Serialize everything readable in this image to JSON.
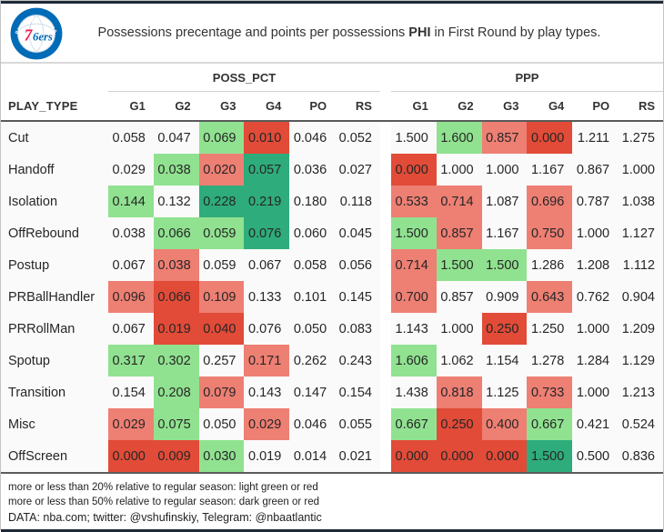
{
  "header": {
    "title": {
      "pre": "Possessions precentage and points per possessions ",
      "team": "PHI",
      "post": " in First Round by play types."
    },
    "logo": {
      "city": "PHILADELPHIA",
      "wordmark_7": "7",
      "wordmark_6ers": "6ers",
      "stars": "★ ★ ★ ★ ★ ★ ★"
    }
  },
  "chart_data": {
    "type": "table",
    "title": "Possessions precentage and points per possessions PHI in First Round by play types.",
    "row_header": "PLAY_TYPE",
    "groups": [
      "POSS_PCT",
      "PPP"
    ],
    "columns": [
      "G1",
      "G2",
      "G3",
      "G4",
      "PO",
      "RS"
    ],
    "color_coding_note": "cell fill codes: lg=light green, dg=dark green, lr=light red, dr=dark red, empty=no fill",
    "rows": [
      {
        "play_type": "Cut",
        "poss_pct": [
          "0.058",
          "0.047",
          "0.069",
          "0.010",
          "0.046",
          "0.052"
        ],
        "poss_pct_colors": [
          "",
          "",
          "lg",
          "dr",
          "",
          ""
        ],
        "ppp": [
          "1.500",
          "1.600",
          "0.857",
          "0.000",
          "1.211",
          "1.275"
        ],
        "ppp_colors": [
          "",
          "lg",
          "lr",
          "dr",
          "",
          ""
        ]
      },
      {
        "play_type": "Handoff",
        "poss_pct": [
          "0.029",
          "0.038",
          "0.020",
          "0.057",
          "0.036",
          "0.027"
        ],
        "poss_pct_colors": [
          "",
          "lg",
          "lr",
          "dg",
          "",
          ""
        ],
        "ppp": [
          "0.000",
          "1.000",
          "1.000",
          "1.167",
          "0.867",
          "1.000"
        ],
        "ppp_colors": [
          "dr",
          "",
          "",
          "",
          "",
          ""
        ]
      },
      {
        "play_type": "Isolation",
        "poss_pct": [
          "0.144",
          "0.132",
          "0.228",
          "0.219",
          "0.180",
          "0.118"
        ],
        "poss_pct_colors": [
          "lg",
          "",
          "dg",
          "dg",
          "",
          ""
        ],
        "ppp": [
          "0.533",
          "0.714",
          "1.087",
          "0.696",
          "0.787",
          "1.038"
        ],
        "ppp_colors": [
          "lr",
          "lr",
          "",
          "lr",
          "",
          ""
        ]
      },
      {
        "play_type": "OffRebound",
        "poss_pct": [
          "0.038",
          "0.066",
          "0.059",
          "0.076",
          "0.060",
          "0.045"
        ],
        "poss_pct_colors": [
          "",
          "lg",
          "lg",
          "dg",
          "",
          ""
        ],
        "ppp": [
          "1.500",
          "0.857",
          "1.167",
          "0.750",
          "1.000",
          "1.127"
        ],
        "ppp_colors": [
          "lg",
          "lr",
          "",
          "lr",
          "",
          ""
        ]
      },
      {
        "play_type": "Postup",
        "poss_pct": [
          "0.067",
          "0.038",
          "0.059",
          "0.067",
          "0.058",
          "0.056"
        ],
        "poss_pct_colors": [
          "",
          "lr",
          "",
          "",
          "",
          ""
        ],
        "ppp": [
          "0.714",
          "1.500",
          "1.500",
          "1.286",
          "1.208",
          "1.112"
        ],
        "ppp_colors": [
          "lr",
          "lg",
          "lg",
          "",
          "",
          ""
        ]
      },
      {
        "play_type": "PRBallHandler",
        "poss_pct": [
          "0.096",
          "0.066",
          "0.109",
          "0.133",
          "0.101",
          "0.145"
        ],
        "poss_pct_colors": [
          "lr",
          "dr",
          "lr",
          "",
          "",
          ""
        ],
        "ppp": [
          "0.700",
          "0.857",
          "0.909",
          "0.643",
          "0.762",
          "0.904"
        ],
        "ppp_colors": [
          "lr",
          "",
          "",
          "lr",
          "",
          ""
        ]
      },
      {
        "play_type": "PRRollMan",
        "poss_pct": [
          "0.067",
          "0.019",
          "0.040",
          "0.076",
          "0.050",
          "0.083"
        ],
        "poss_pct_colors": [
          "",
          "dr",
          "dr",
          "",
          "",
          ""
        ],
        "ppp": [
          "1.143",
          "1.000",
          "0.250",
          "1.250",
          "1.000",
          "1.209"
        ],
        "ppp_colors": [
          "",
          "",
          "dr",
          "",
          "",
          ""
        ]
      },
      {
        "play_type": "Spotup",
        "poss_pct": [
          "0.317",
          "0.302",
          "0.257",
          "0.171",
          "0.262",
          "0.243"
        ],
        "poss_pct_colors": [
          "lg",
          "lg",
          "",
          "lr",
          "",
          ""
        ],
        "ppp": [
          "1.606",
          "1.062",
          "1.154",
          "1.278",
          "1.284",
          "1.129"
        ],
        "ppp_colors": [
          "lg",
          "",
          "",
          "",
          "",
          ""
        ]
      },
      {
        "play_type": "Transition",
        "poss_pct": [
          "0.154",
          "0.208",
          "0.079",
          "0.143",
          "0.147",
          "0.154"
        ],
        "poss_pct_colors": [
          "",
          "lg",
          "lr",
          "",
          "",
          ""
        ],
        "ppp": [
          "1.438",
          "0.818",
          "1.125",
          "0.733",
          "1.000",
          "1.213"
        ],
        "ppp_colors": [
          "",
          "lr",
          "",
          "lr",
          "",
          ""
        ]
      },
      {
        "play_type": "Misc",
        "poss_pct": [
          "0.029",
          "0.075",
          "0.050",
          "0.029",
          "0.046",
          "0.055"
        ],
        "poss_pct_colors": [
          "lr",
          "lg",
          "",
          "lr",
          "",
          ""
        ],
        "ppp": [
          "0.667",
          "0.250",
          "0.400",
          "0.667",
          "0.421",
          "0.524"
        ],
        "ppp_colors": [
          "lg",
          "dr",
          "lr",
          "lg",
          "",
          ""
        ]
      },
      {
        "play_type": "OffScreen",
        "poss_pct": [
          "0.000",
          "0.009",
          "0.030",
          "0.019",
          "0.014",
          "0.021"
        ],
        "poss_pct_colors": [
          "dr",
          "dr",
          "lg",
          "",
          "",
          ""
        ],
        "ppp": [
          "0.000",
          "0.000",
          "0.000",
          "1.500",
          "0.500",
          "0.836"
        ],
        "ppp_colors": [
          "dr",
          "dr",
          "dr",
          "dg",
          "",
          ""
        ]
      }
    ]
  },
  "footer": {
    "lines": [
      "more or less than 20% relative to regular season: light green or red",
      "more or less than 50% relative to regular season: dark green or red",
      "DATA: nba.com; twitter: @vshufinskiy, Telegram: @nbaatlantic"
    ]
  },
  "colors": {
    "cell_fills": {
      "lg": "#90E290",
      "dg": "#2EAC7B",
      "lr": "#EE7F73",
      "dr": "#E14B38"
    },
    "rule_navy": "#1E2A38",
    "sixers_blue": "#006BB6",
    "sixers_red": "#ED174C"
  }
}
